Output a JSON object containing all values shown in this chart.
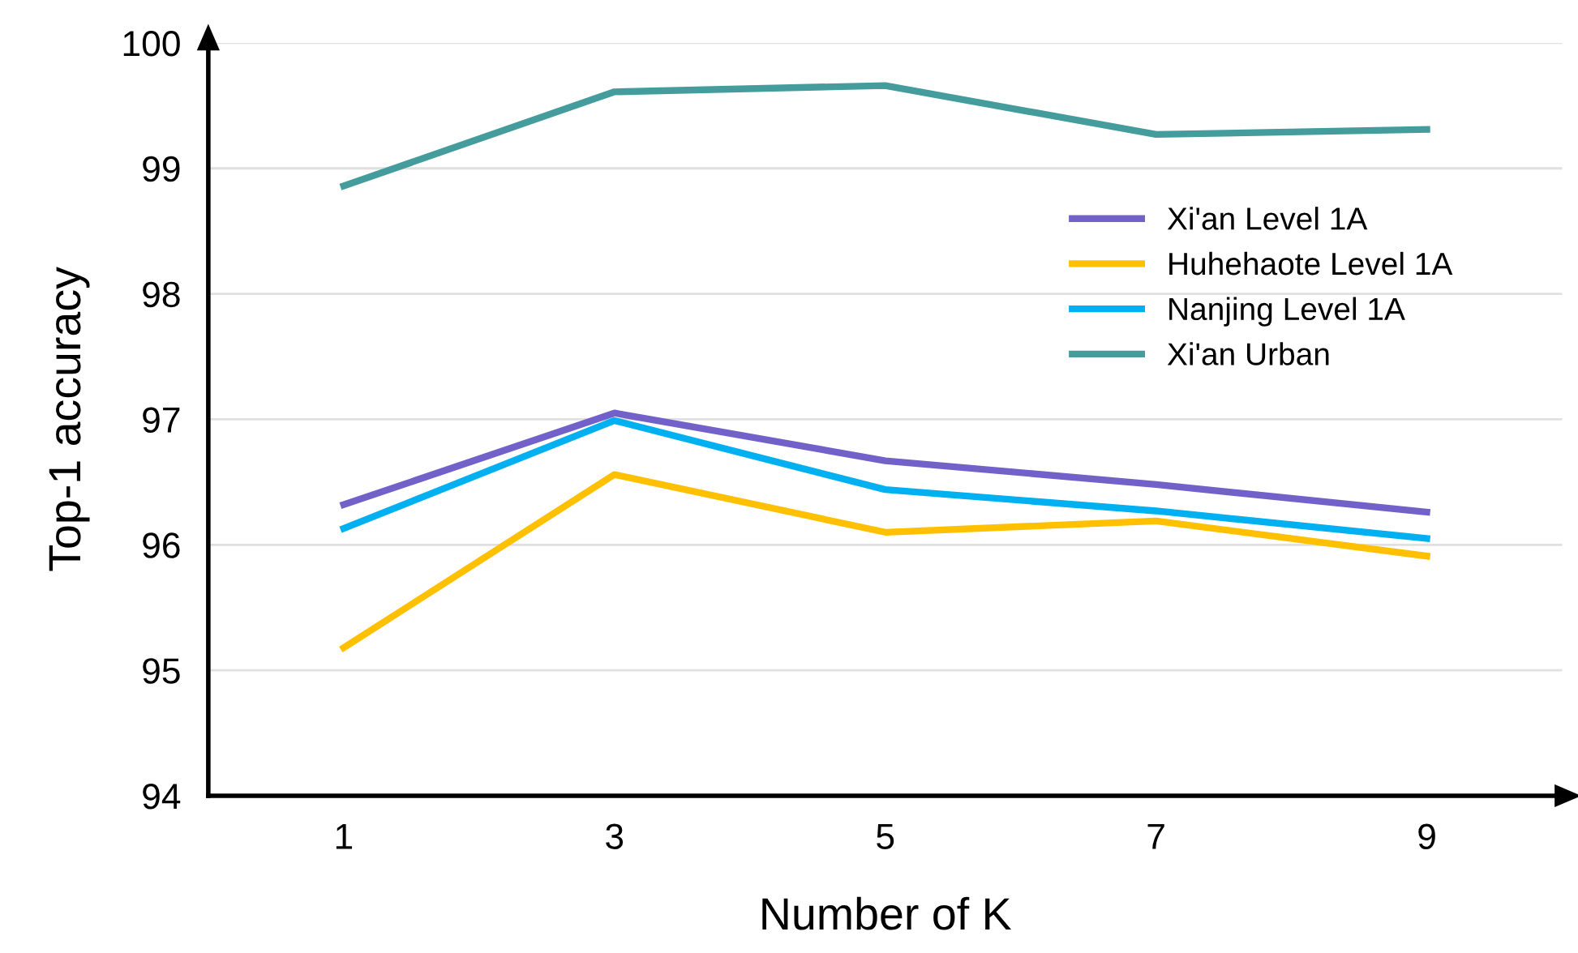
{
  "chart_data": {
    "type": "line",
    "xlabel": "Number of K",
    "ylabel": "Top-1 accuracy",
    "x": [
      1,
      3,
      5,
      7,
      9
    ],
    "series": [
      {
        "name": "Xi'an Level 1A",
        "color": "#7161c9",
        "values": [
          96.32,
          97.05,
          96.67,
          96.48,
          96.26
        ]
      },
      {
        "name": "Huhehaote Level 1A",
        "color": "#ffc000",
        "values": [
          95.18,
          96.56,
          96.1,
          96.19,
          95.91
        ]
      },
      {
        "name": "Nanjing Level 1A",
        "color": "#00b0f0",
        "values": [
          96.13,
          96.99,
          96.44,
          96.27,
          96.05
        ]
      },
      {
        "name": "Xi'an Urban",
        "color": "#449c9c",
        "values": [
          98.86,
          99.61,
          99.66,
          99.27,
          99.31
        ]
      }
    ],
    "xlim": [
      0,
      10
    ],
    "xticks": [
      1,
      3,
      5,
      7,
      9
    ],
    "ylim": [
      94,
      100
    ],
    "yticks": [
      94,
      95,
      96,
      97,
      98,
      99,
      100
    ],
    "grid": "y",
    "legend": "top right",
    "marker": "none",
    "line_style": "solid"
  }
}
